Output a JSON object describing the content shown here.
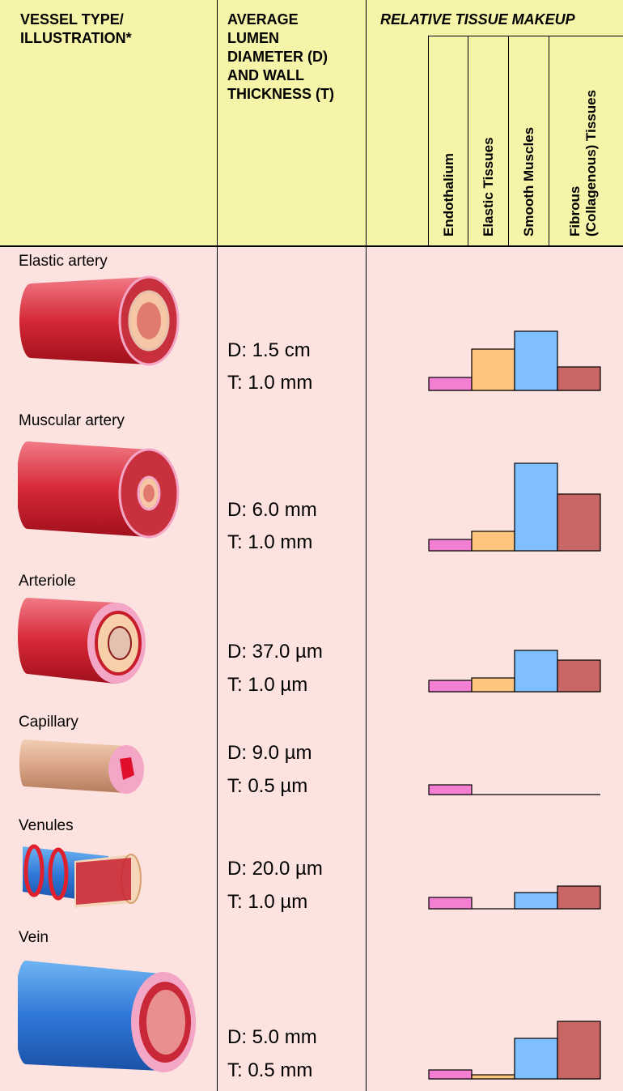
{
  "header": {
    "col1_title": "VESSEL TYPE/\nILLUSTRATION*",
    "col2_title": "AVERAGE\nLUMEN\nDIAMETER (D)\nAND WALL\nTHICKNESS (T)",
    "col3_title": "RELATIVE TISSUE MAKEUP"
  },
  "chart_data": {
    "type": "bar",
    "title": "RELATIVE TISSUE MAKEUP",
    "categories": [
      "Endothalium",
      "Elastic Tissues",
      "Smooth Muscles",
      "Fibrous\n(Collagenous) Tissues"
    ],
    "category_colors": [
      "#f37fd3",
      "#fdc57e",
      "#7fbfff",
      "#c86666"
    ],
    "series": [
      {
        "name": "Elastic artery",
        "values": [
          16,
          51,
          73,
          29
        ]
      },
      {
        "name": "Muscular artery",
        "values": [
          14,
          24,
          108,
          70
        ]
      },
      {
        "name": "Arteriole",
        "values": [
          14,
          17,
          51,
          39
        ]
      },
      {
        "name": "Capillary",
        "values": [
          12,
          0,
          0,
          0
        ]
      },
      {
        "name": "Venules",
        "values": [
          14,
          0,
          20,
          28
        ]
      },
      {
        "name": "Vein",
        "values": [
          11,
          5,
          50,
          71
        ]
      }
    ]
  },
  "vessels": [
    {
      "name": "Elastic artery",
      "d": "D: 1.5 cm",
      "t": "T: 1.0 mm"
    },
    {
      "name": "Muscular artery",
      "d": "D: 6.0 mm",
      "t": "T: 1.0 mm"
    },
    {
      "name": "Arteriole",
      "d": "D: 37.0 µm",
      "t": "T: 1.0 µm"
    },
    {
      "name": "Capillary",
      "d": "D: 9.0 µm",
      "t": "T: 0.5 µm"
    },
    {
      "name": "Venules",
      "d": "D: 20.0 µm",
      "t": "T: 1.0 µm"
    },
    {
      "name": "Vein",
      "d": "D: 5.0 mm",
      "t": "T: 0.5 mm"
    }
  ]
}
